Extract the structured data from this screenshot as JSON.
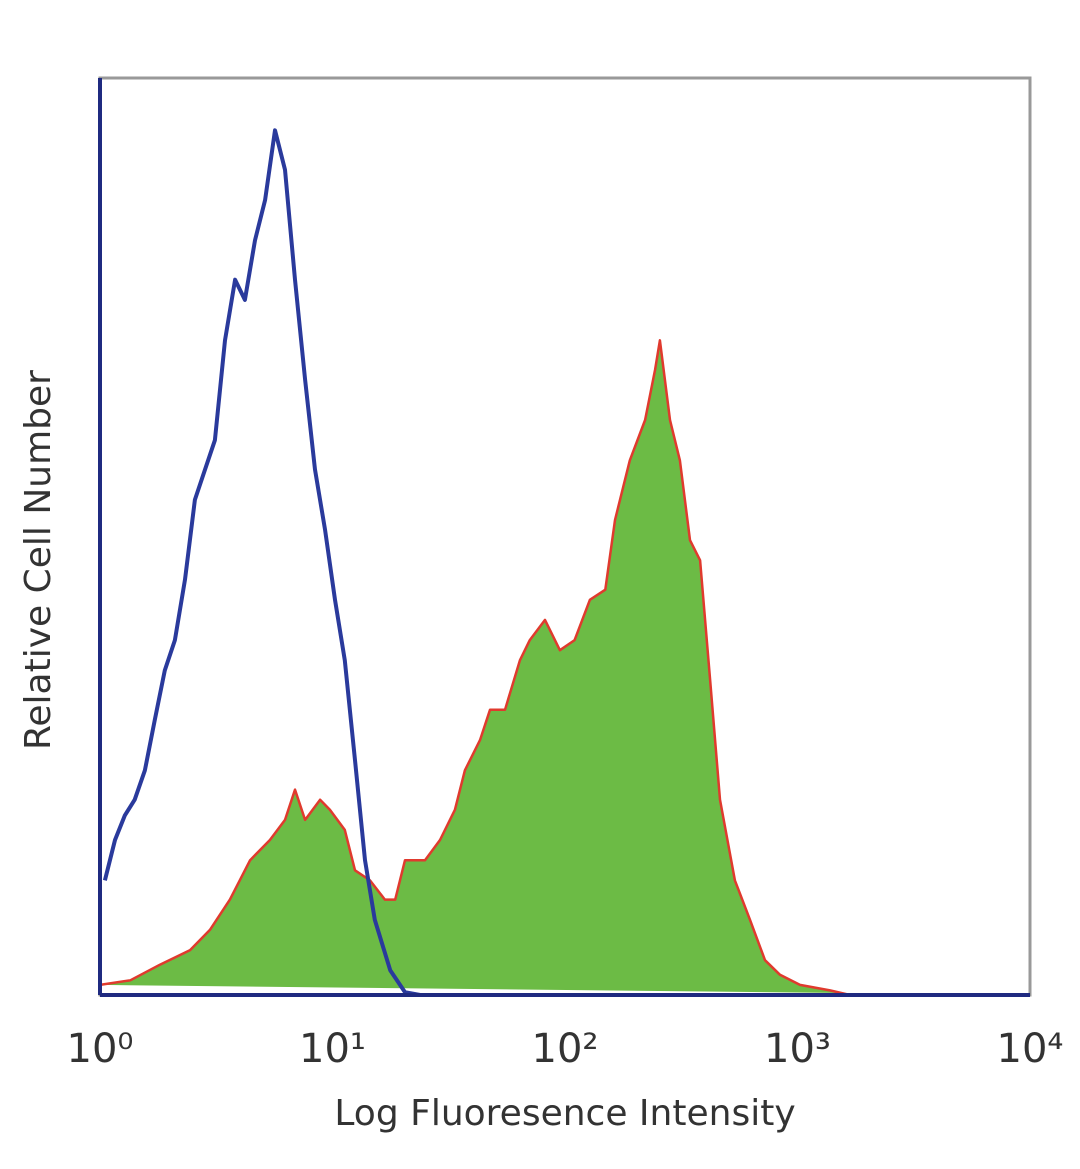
{
  "chart_data": {
    "type": "line",
    "xlabel": "Log Fluoresence Intensity",
    "ylabel": "Relative Cell Number",
    "xscale": "log",
    "xlim": [
      1,
      10000
    ],
    "xticks": [
      {
        "value": 1,
        "label": "10⁰"
      },
      {
        "value": 10,
        "label": "10¹"
      },
      {
        "value": 100,
        "label": "10²"
      },
      {
        "value": 1000,
        "label": "10³"
      },
      {
        "value": 10000,
        "label": "10⁴"
      }
    ],
    "ylim": [
      0,
      100
    ],
    "series": [
      {
        "color": "#6cbb45",
        "edge_color": "#e03a2e",
        "x": [
          1,
          1.35,
          1.81,
          2.44,
          2.97,
          3.62,
          4.42,
          5.38,
          6.25,
          6.9,
          7.62,
          8.84,
          9.75,
          11.3,
          12.5,
          14.5,
          16.8,
          18.6,
          20.5,
          25.0,
          29.0,
          33.6,
          37.1,
          43.1,
          47.6,
          55.2,
          64.0,
          70.6,
          82.0,
          95.1,
          110,
          128,
          149,
          164,
          190,
          221,
          244,
          256,
          283,
          312,
          345,
          381,
          421,
          464,
          538,
          625,
          725,
          841,
          1025,
          1380,
          1682,
          10000
        ],
        "values": [
          1.1,
          1.6,
          3.3,
          4.9,
          7.1,
          10.4,
          14.7,
          16.9,
          19.1,
          22.4,
          19.1,
          21.3,
          20.2,
          18.0,
          13.6,
          12.5,
          10.4,
          10.4,
          14.7,
          14.7,
          16.9,
          20.2,
          24.5,
          27.8,
          31.1,
          31.1,
          36.5,
          38.7,
          40.9,
          37.6,
          38.7,
          43.1,
          44.2,
          51.8,
          58.3,
          62.7,
          68.2,
          71.4,
          62.7,
          58.3,
          49.6,
          47.4,
          34.4,
          21.3,
          12.5,
          8.2,
          3.8,
          2.2,
          1.1,
          0.5,
          0,
          0
        ]
      },
      {
        "color": "#2a3a9c",
        "x": [
          1.05,
          1.16,
          1.28,
          1.41,
          1.56,
          1.72,
          1.9,
          2.1,
          2.32,
          2.56,
          2.83,
          3.12,
          3.45,
          3.81,
          4.2,
          4.64,
          5.13,
          5.66,
          6.25,
          6.9,
          7.62,
          8.41,
          9.29,
          10.25,
          11.3,
          12.5,
          13.8,
          15.2,
          17.7,
          20.5,
          23.8,
          10000
        ],
        "values": [
          12.5,
          16.9,
          19.6,
          21.3,
          24.5,
          30.0,
          35.4,
          38.7,
          45.3,
          54.0,
          57.3,
          60.5,
          71.4,
          78.0,
          75.8,
          82.3,
          86.7,
          94.3,
          90.0,
          78.0,
          67.1,
          57.3,
          50.7,
          43.1,
          36.5,
          25.6,
          14.7,
          8.2,
          2.7,
          0.3,
          0,
          0
        ]
      }
    ]
  }
}
